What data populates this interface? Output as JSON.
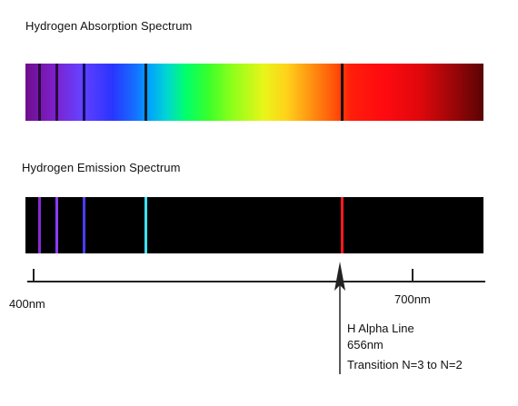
{
  "absorption": {
    "title": "Hydrogen Absorption Spectrum",
    "lines": [
      {
        "pos": 0.031,
        "color": "#2a0a3a"
      },
      {
        "pos": 0.069,
        "color": "#2a0a3a"
      },
      {
        "pos": 0.127,
        "color": "#10105a"
      },
      {
        "pos": 0.262,
        "color": "#0a1a20"
      },
      {
        "pos": 0.692,
        "color": "#1a0404"
      }
    ]
  },
  "emission": {
    "title": "Hydrogen Emission Spectrum",
    "lines": [
      {
        "pos": 0.031,
        "color": "#8a2ad6"
      },
      {
        "pos": 0.069,
        "color": "#8a3cff"
      },
      {
        "pos": 0.127,
        "color": "#4b3cff"
      },
      {
        "pos": 0.262,
        "color": "#3fe0ff"
      },
      {
        "pos": 0.692,
        "color": "#ff1a1a"
      }
    ]
  },
  "scale": {
    "min_label": "400nm",
    "max_label": "700nm"
  },
  "annotation": {
    "line1": "H Alpha Line",
    "line2": "656nm",
    "line3": "Transition N=3 to N=2"
  }
}
